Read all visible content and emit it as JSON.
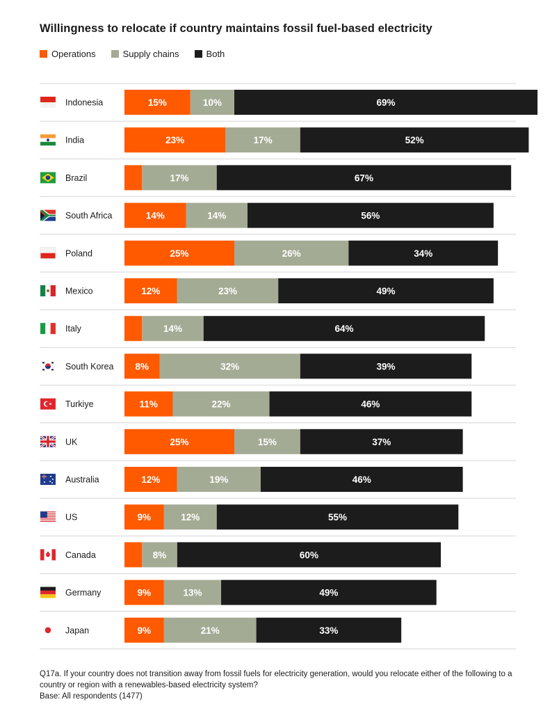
{
  "title": "Willingness to relocate if country maintains fossil fuel-based electricity",
  "legend": [
    {
      "label": "Operations",
      "color": "#ff5a00"
    },
    {
      "label": "Supply chains",
      "color": "#a4ab94"
    },
    {
      "label": "Both",
      "color": "#1c1c1c"
    }
  ],
  "chart_data": {
    "type": "bar",
    "orientation": "horizontal",
    "stacked": true,
    "title": "Willingness to relocate if country maintains fossil fuel-based electricity",
    "categories": [
      "Indonesia",
      "India",
      "Brazil",
      "South Africa",
      "Poland",
      "Mexico",
      "Italy",
      "South Korea",
      "Turkiye",
      "UK",
      "Australia",
      "US",
      "Canada",
      "Germany",
      "Japan"
    ],
    "series": [
      {
        "name": "Operations",
        "color": "#ff5a00",
        "values": [
          15,
          23,
          4,
          14,
          25,
          12,
          4,
          8,
          11,
          25,
          12,
          9,
          4,
          9,
          9
        ],
        "labels": [
          "15%",
          "23%",
          "",
          "14%",
          "25%",
          "12%",
          "",
          "8%",
          "11%",
          "25%",
          "12%",
          "9%",
          "",
          "9%",
          "9%"
        ]
      },
      {
        "name": "Supply chains",
        "color": "#a4ab94",
        "values": [
          10,
          17,
          17,
          14,
          26,
          23,
          14,
          32,
          22,
          15,
          19,
          12,
          8,
          13,
          21
        ],
        "labels": [
          "10%",
          "17%",
          "17%",
          "14%",
          "26%",
          "23%",
          "14%",
          "32%",
          "22%",
          "15%",
          "19%",
          "12%",
          "8%",
          "13%",
          "21%"
        ]
      },
      {
        "name": "Both",
        "color": "#1c1c1c",
        "values": [
          69,
          52,
          67,
          56,
          34,
          49,
          64,
          39,
          46,
          37,
          46,
          55,
          60,
          49,
          33
        ],
        "labels": [
          "69%",
          "52%",
          "67%",
          "56%",
          "34%",
          "49%",
          "64%",
          "39%",
          "46%",
          "37%",
          "46%",
          "55%",
          "60%",
          "49%",
          "33%"
        ]
      }
    ],
    "xlim": [
      0,
      100
    ],
    "grid": false
  },
  "flags": [
    "flag-indonesia-icon",
    "flag-india-icon",
    "flag-brazil-icon",
    "flag-south-africa-icon",
    "flag-poland-icon",
    "flag-mexico-icon",
    "flag-italy-icon",
    "flag-south-korea-icon",
    "flag-turkiye-icon",
    "flag-uk-icon",
    "flag-australia-icon",
    "flag-us-icon",
    "flag-canada-icon",
    "flag-germany-icon",
    "flag-japan-icon"
  ],
  "footnote": {
    "question": "Q17a. If your country does not transition away from fossil fuels for electricity generation, would you relocate either of the following to a country or region with a renewables-based electricity system?",
    "base": "Base: All respondents (1477)"
  }
}
